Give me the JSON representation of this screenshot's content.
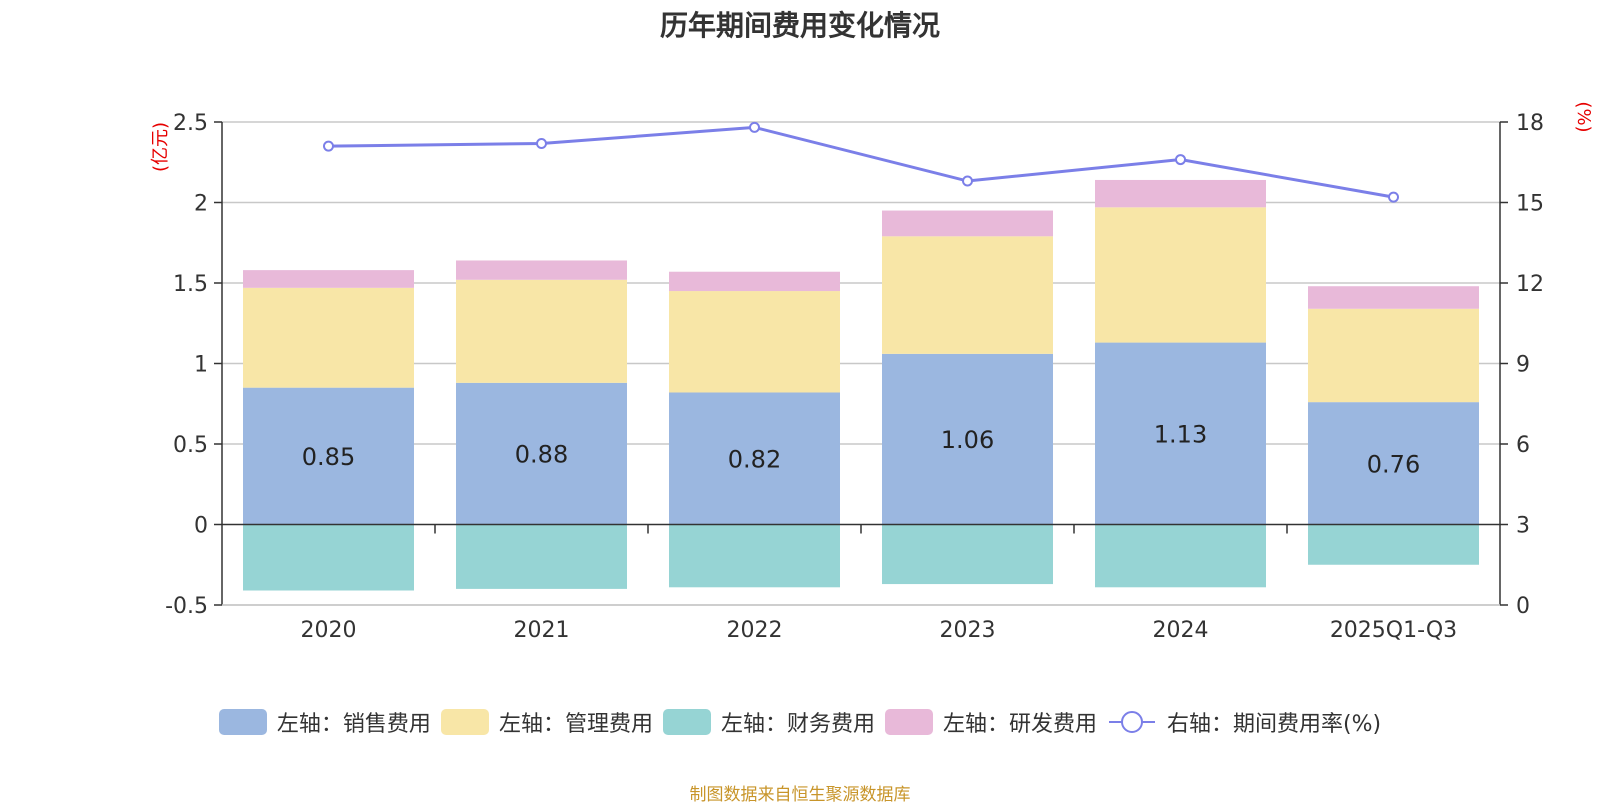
{
  "chart_data": {
    "type": "bar",
    "stacked": true,
    "title": "历年期间费用变化情况",
    "categories": [
      "2020",
      "2021",
      "2022",
      "2023",
      "2024",
      "2025Q1-Q3"
    ],
    "left_axis": {
      "label": "(亿元)",
      "range": [
        -0.5,
        2.5
      ],
      "ticks": [
        "-0.5",
        "0",
        "0.5",
        "1",
        "1.5",
        "2",
        "2.5"
      ],
      "tick_values": [
        -0.5,
        0,
        0.5,
        1,
        1.5,
        2,
        2.5
      ]
    },
    "right_axis": {
      "label": "(%)",
      "range": [
        0,
        18
      ],
      "ticks": [
        "0",
        "3",
        "6",
        "9",
        "12",
        "15",
        "18"
      ],
      "tick_values": [
        0,
        3,
        6,
        9,
        12,
        15,
        18
      ]
    },
    "series": [
      {
        "name": "左轴：销售费用",
        "axis": "left",
        "color": "#9bb7e0",
        "values": [
          0.85,
          0.88,
          0.82,
          1.06,
          1.13,
          0.76
        ],
        "labels": [
          "0.85",
          "0.88",
          "0.82",
          "1.06",
          "1.13",
          "0.76"
        ]
      },
      {
        "name": "左轴：管理费用",
        "axis": "left",
        "color": "#f8e6a7",
        "values": [
          0.62,
          0.64,
          0.63,
          0.73,
          0.84,
          0.58
        ]
      },
      {
        "name": "左轴：财务费用",
        "axis": "left",
        "color": "#96d4d4",
        "values": [
          -0.41,
          -0.4,
          -0.39,
          -0.37,
          -0.39,
          -0.25
        ]
      },
      {
        "name": "左轴：研发费用",
        "axis": "left",
        "color": "#e8b9d9",
        "values": [
          0.11,
          0.12,
          0.12,
          0.16,
          0.17,
          0.14
        ]
      },
      {
        "name": "右轴：期间费用率(%)",
        "axis": "right",
        "type": "line",
        "color": "#7b7fe8",
        "values": [
          17.1,
          17.2,
          17.8,
          15.8,
          16.6,
          15.2
        ]
      }
    ],
    "grid": true,
    "legend_position": "bottom"
  },
  "source": "制图数据来自恒生聚源数据库"
}
